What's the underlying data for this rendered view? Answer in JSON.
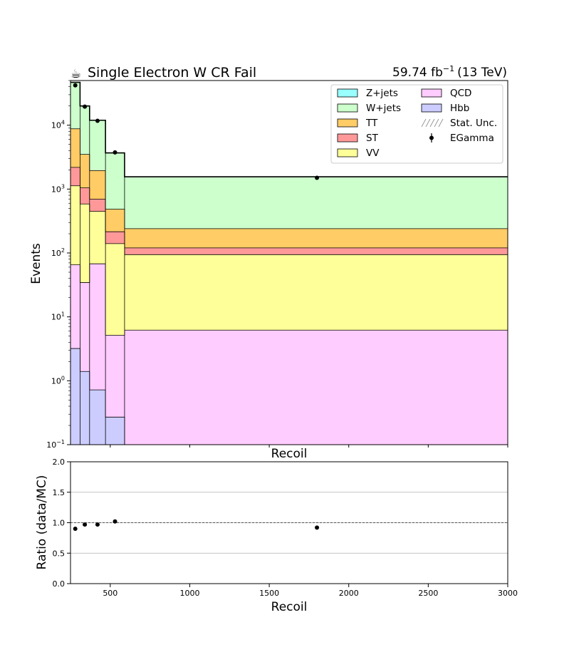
{
  "chart_data": [
    {
      "type": "area",
      "title": "Single Electron W CR Fail",
      "title_icon": "coffee-icon",
      "lumi": "59.74 fb",
      "lumi_exp": "−1",
      "energy": "(13 TeV)",
      "xlabel": "Recoil",
      "ylabel": "Events",
      "yscale": "log",
      "ylim": [
        0.1,
        50000
      ],
      "xlim": [
        250,
        3000
      ],
      "ytick_labels": [
        {
          "v": 0.1,
          "base": "10",
          "exp": "−1"
        },
        {
          "v": 1,
          "base": "10",
          "exp": "0"
        },
        {
          "v": 10,
          "base": "10",
          "exp": "1"
        },
        {
          "v": 100,
          "base": "10",
          "exp": "2"
        },
        {
          "v": 1000,
          "base": "10",
          "exp": "3"
        },
        {
          "v": 10000,
          "base": "10",
          "exp": "4"
        }
      ],
      "bin_edges": [
        250,
        310,
        370,
        470,
        590,
        3000
      ],
      "series": [
        {
          "name": "Hbb",
          "color": "#ccccff",
          "values": [
            3.2,
            1.4,
            0.72,
            0.27,
            0.1
          ]
        },
        {
          "name": "QCD",
          "color": "#ffccff",
          "values": [
            62,
            33,
            67,
            4.9,
            6.1
          ]
        },
        {
          "name": "VV",
          "color": "#ffff99",
          "values": [
            1060,
            550,
            380,
            135,
            88
          ]
        },
        {
          "name": "ST",
          "color": "#ff9999",
          "values": [
            1060,
            460,
            250,
            75,
            26
          ]
        },
        {
          "name": "TT",
          "color": "#ffcc66",
          "values": [
            6600,
            2450,
            1250,
            270,
            120
          ]
        },
        {
          "name": "W+jets",
          "color": "#ccffcc",
          "values": [
            38000,
            16500,
            10000,
            3200,
            1320
          ]
        },
        {
          "name": "Z+jets",
          "color": "#99ffff",
          "values": [
            0,
            0,
            0,
            0,
            0
          ]
        }
      ],
      "data": {
        "name": "EGamma",
        "x": [
          280,
          340,
          420,
          530,
          1800
        ],
        "y": [
          42000,
          19500,
          11700,
          3750,
          1500
        ]
      },
      "legend": {
        "placement": "top-right",
        "entries": [
          "Z+jets",
          "W+jets",
          "TT",
          "ST",
          "VV",
          "QCD",
          "Hbb",
          "Stat. Unc.",
          "EGamma"
        ]
      }
    },
    {
      "type": "scatter",
      "xlabel": "Recoil",
      "ylabel": "Ratio (data/MC)",
      "xlim": [
        250,
        3000
      ],
      "ylim": [
        0.0,
        2.0
      ],
      "grid": true,
      "yticks": [
        "0.0",
        "0.5",
        "1.0",
        "1.5",
        "2.0"
      ],
      "xticks": [
        "500",
        "1000",
        "1500",
        "2000",
        "2500",
        "3000"
      ],
      "x": [
        280,
        340,
        420,
        530,
        1800
      ],
      "y": [
        0.9,
        0.97,
        0.97,
        1.02,
        0.92
      ],
      "reference_line": 1.0
    }
  ]
}
